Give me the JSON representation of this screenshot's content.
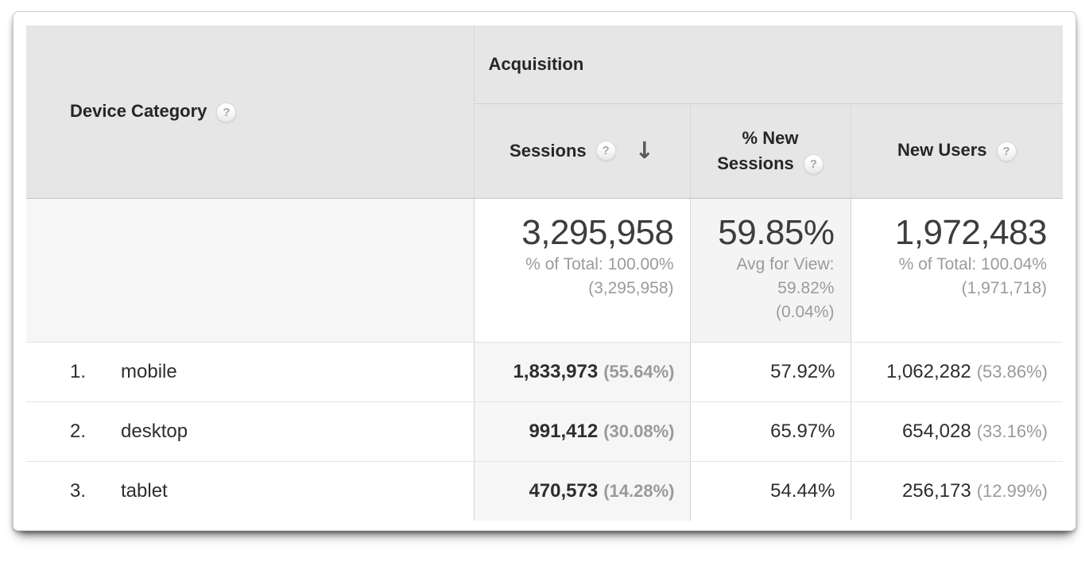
{
  "colors": {
    "header_bg": "#e6e6e6",
    "sorted_col_bg": "#f6f6f6",
    "totals_shaded_bg": "#f4f4f4",
    "muted_text": "#9b9b9b",
    "dark_text": "#2e2e2e"
  },
  "icons": {
    "help": "?",
    "sort_desc": "↓"
  },
  "table": {
    "dimension_header": "Device Category",
    "group_header": "Acquisition",
    "columns": {
      "sessions": "Sessions",
      "new_sessions": "% New Sessions",
      "new_users": "New Users"
    },
    "totals": {
      "sessions": {
        "value": "3,295,958",
        "line1": "% of Total: 100.00%",
        "line2": "(3,295,958)"
      },
      "new_sessions": {
        "value": "59.85%",
        "line1": "Avg for View:",
        "line2": "59.82%",
        "line3": "(0.04%)"
      },
      "new_users": {
        "value": "1,972,483",
        "line1": "% of Total: 100.04%",
        "line2": "(1,971,718)"
      }
    },
    "rows": [
      {
        "rank": "1.",
        "label": "mobile",
        "sessions": "1,833,973",
        "sessions_pct": "(55.64%)",
        "new_sessions": "57.92%",
        "new_users": "1,062,282",
        "new_users_pct": "(53.86%)"
      },
      {
        "rank": "2.",
        "label": "desktop",
        "sessions": "991,412",
        "sessions_pct": "(30.08%)",
        "new_sessions": "65.97%",
        "new_users": "654,028",
        "new_users_pct": "(33.16%)"
      },
      {
        "rank": "3.",
        "label": "tablet",
        "sessions": "470,573",
        "sessions_pct": "(14.28%)",
        "new_sessions": "54.44%",
        "new_users": "256,173",
        "new_users_pct": "(12.99%)"
      }
    ]
  }
}
